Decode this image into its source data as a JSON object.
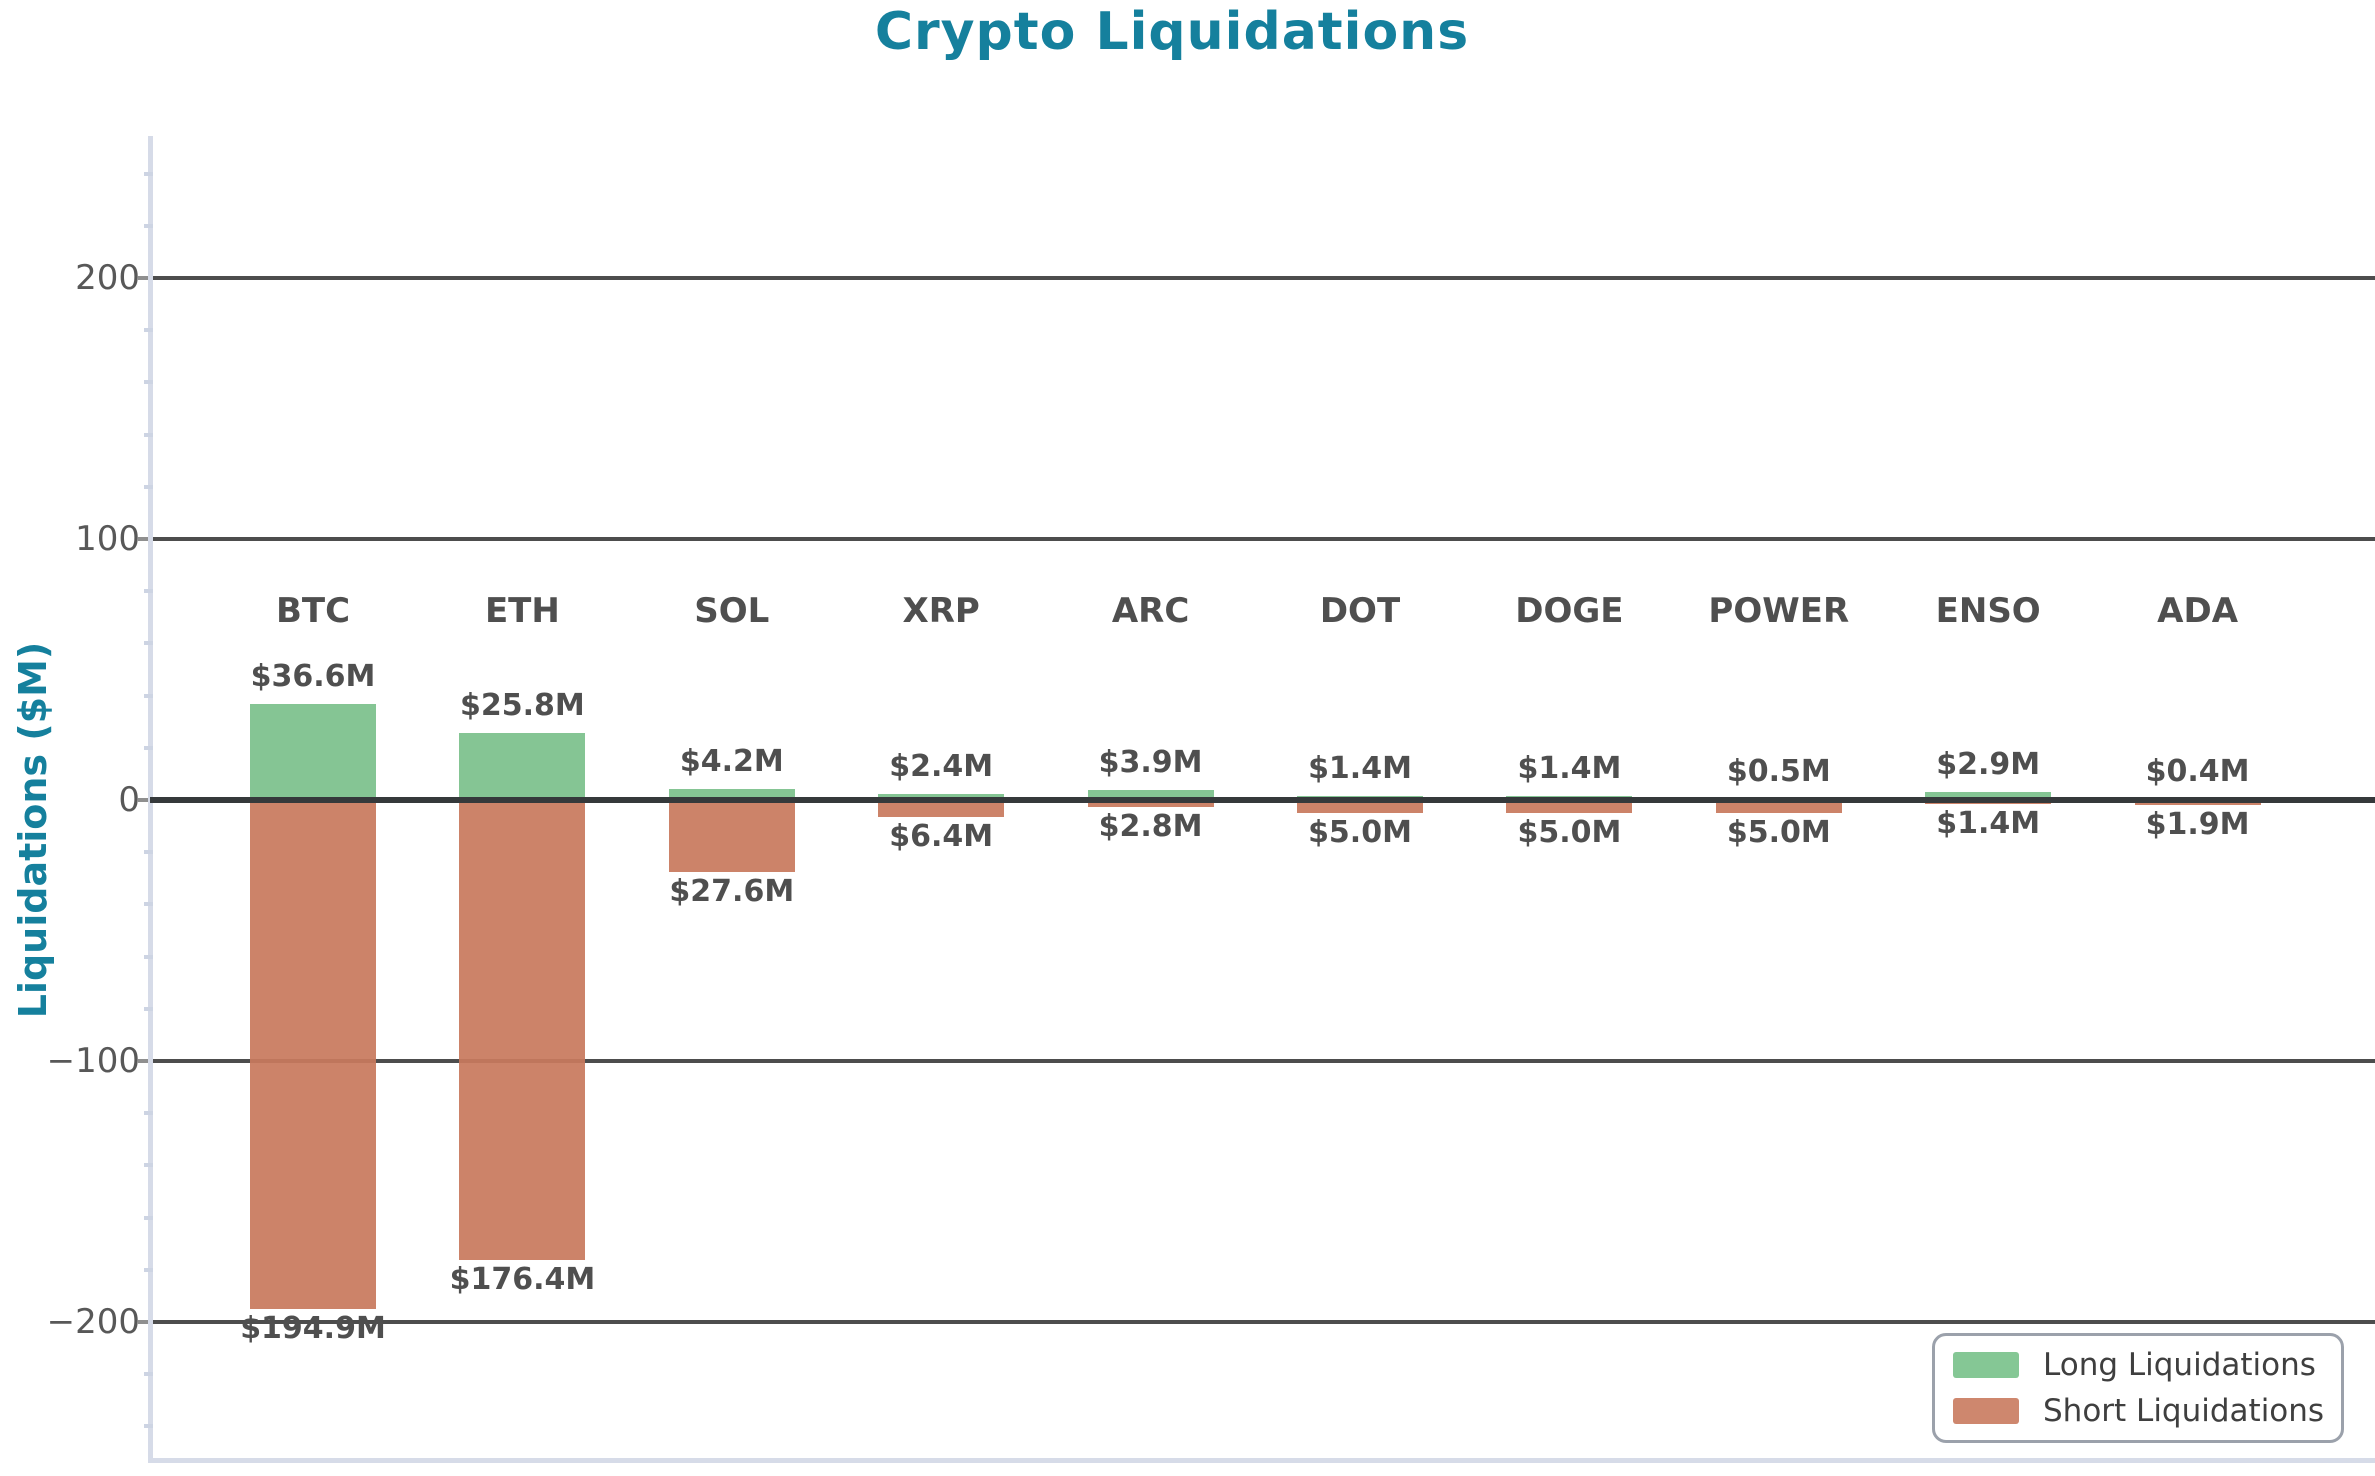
{
  "chart_data": {
    "type": "bar",
    "title": "Crypto Liquidations",
    "ylabel": "Liquidations ($M)",
    "categories": [
      "BTC",
      "ETH",
      "SOL",
      "XRP",
      "ARC",
      "DOT",
      "DOGE",
      "POWER",
      "ENSO",
      "ADA"
    ],
    "series": [
      {
        "name": "Long Liquidations",
        "direction": "up",
        "color": "#85c795",
        "values": [
          36.6,
          25.8,
          4.2,
          2.4,
          3.9,
          1.4,
          1.4,
          0.5,
          2.9,
          0.4
        ],
        "value_labels": [
          "$36.6M",
          "$25.8M",
          "$4.2M",
          "$2.4M",
          "$3.9M",
          "$1.4M",
          "$1.4M",
          "$0.5M",
          "$2.9M",
          "$0.4M"
        ]
      },
      {
        "name": "Short Liquidations",
        "direction": "down",
        "color": "#ce876e",
        "values": [
          194.9,
          176.4,
          27.6,
          6.4,
          2.8,
          5.0,
          5.0,
          5.0,
          1.4,
          1.9
        ],
        "value_labels": [
          "$194.9M",
          "$176.4M",
          "$27.6M",
          "$6.4M",
          "$2.8M",
          "$5.0M",
          "$5.0M",
          "$5.0M",
          "$1.4M",
          "$1.9M"
        ]
      }
    ],
    "yticks": [
      200,
      100,
      0,
      -100,
      -200
    ],
    "ytick_labels": [
      "200",
      "100",
      "0",
      "−100",
      "−200"
    ],
    "ylim": [
      -253,
      254
    ],
    "minor_tick_step": 20,
    "grid": "horizontal major gridlines on",
    "legend_position": "lower right"
  },
  "colors": {
    "title": "#15809d",
    "axis_label": "#15809d",
    "grid": "#4d4d4d",
    "zero_line": "#35393b",
    "long_bar": "#85c795",
    "short_bar": "#ce876e",
    "tick_label": "#585858",
    "value_label": "#4f4f4f",
    "category_label": "#4f4f4f",
    "spine": "#d6dbe8",
    "major_tick": "#8f8f8f",
    "minor_tick": "#cdd4e3",
    "legend_border": "#9ba1ab",
    "legend_text": "#3f3f3f"
  }
}
